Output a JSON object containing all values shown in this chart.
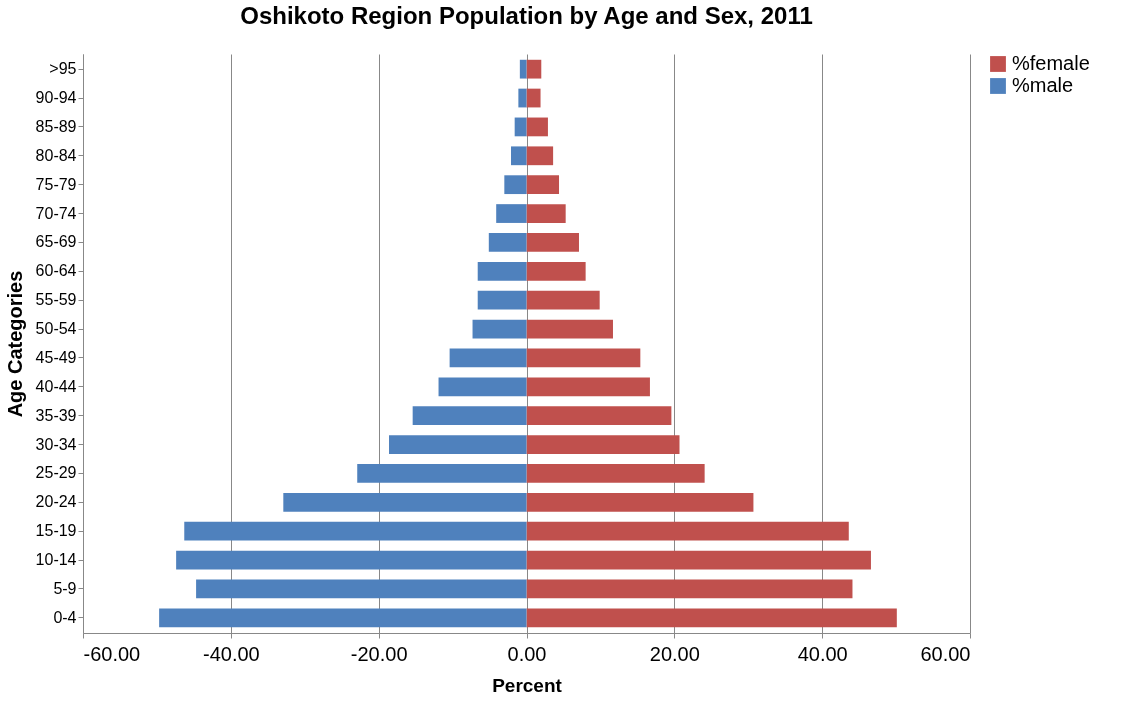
{
  "chart_data": {
    "type": "bar",
    "orientation": "horizontal",
    "title": "Oshikoto Region Population by Age and Sex, 2011",
    "xlabel": "Percent",
    "ylabel": "Age Categories",
    "categories": [
      ">95",
      "90-94",
      "85-89",
      "80-84",
      "75-79",
      "70-74",
      "65-69",
      "60-64",
      "55-59",
      "50-54",
      "45-49",
      "40-44",
      "35-39",
      "30-34",
      "25-29",
      "20-24",
      "15-19",
      "10-14",
      "5-9",
      "0-4"
    ],
    "series": [
      {
        "name": "%female",
        "color": "#c0504d",
        "values": [
          2.0,
          1.9,
          2.9,
          3.6,
          4.4,
          5.3,
          7.1,
          8.0,
          9.9,
          11.7,
          15.4,
          16.7,
          19.6,
          20.7,
          24.1,
          30.7,
          43.6,
          46.6,
          44.1,
          50.1
        ]
      },
      {
        "name": "%male",
        "color": "#4f81bd",
        "values": [
          -0.9,
          -1.1,
          -1.6,
          -2.1,
          -3.0,
          -4.1,
          -5.1,
          -6.6,
          -6.6,
          -7.3,
          -10.4,
          -11.9,
          -15.4,
          -18.6,
          -22.9,
          -32.9,
          -46.3,
          -47.4,
          -44.7,
          -49.7
        ]
      }
    ],
    "xlim": [
      -60,
      60
    ],
    "xticks": [
      {
        "value": -60,
        "label": "-60.00"
      },
      {
        "value": -40,
        "label": "-40.00"
      },
      {
        "value": -20,
        "label": "-20.00"
      },
      {
        "value": 0,
        "label": "0.00"
      },
      {
        "value": 20,
        "label": "20.00"
      },
      {
        "value": 40,
        "label": "40.00"
      },
      {
        "value": 60,
        "label": "60.00"
      }
    ],
    "stacked": true,
    "grid": "x",
    "legend": "right"
  }
}
